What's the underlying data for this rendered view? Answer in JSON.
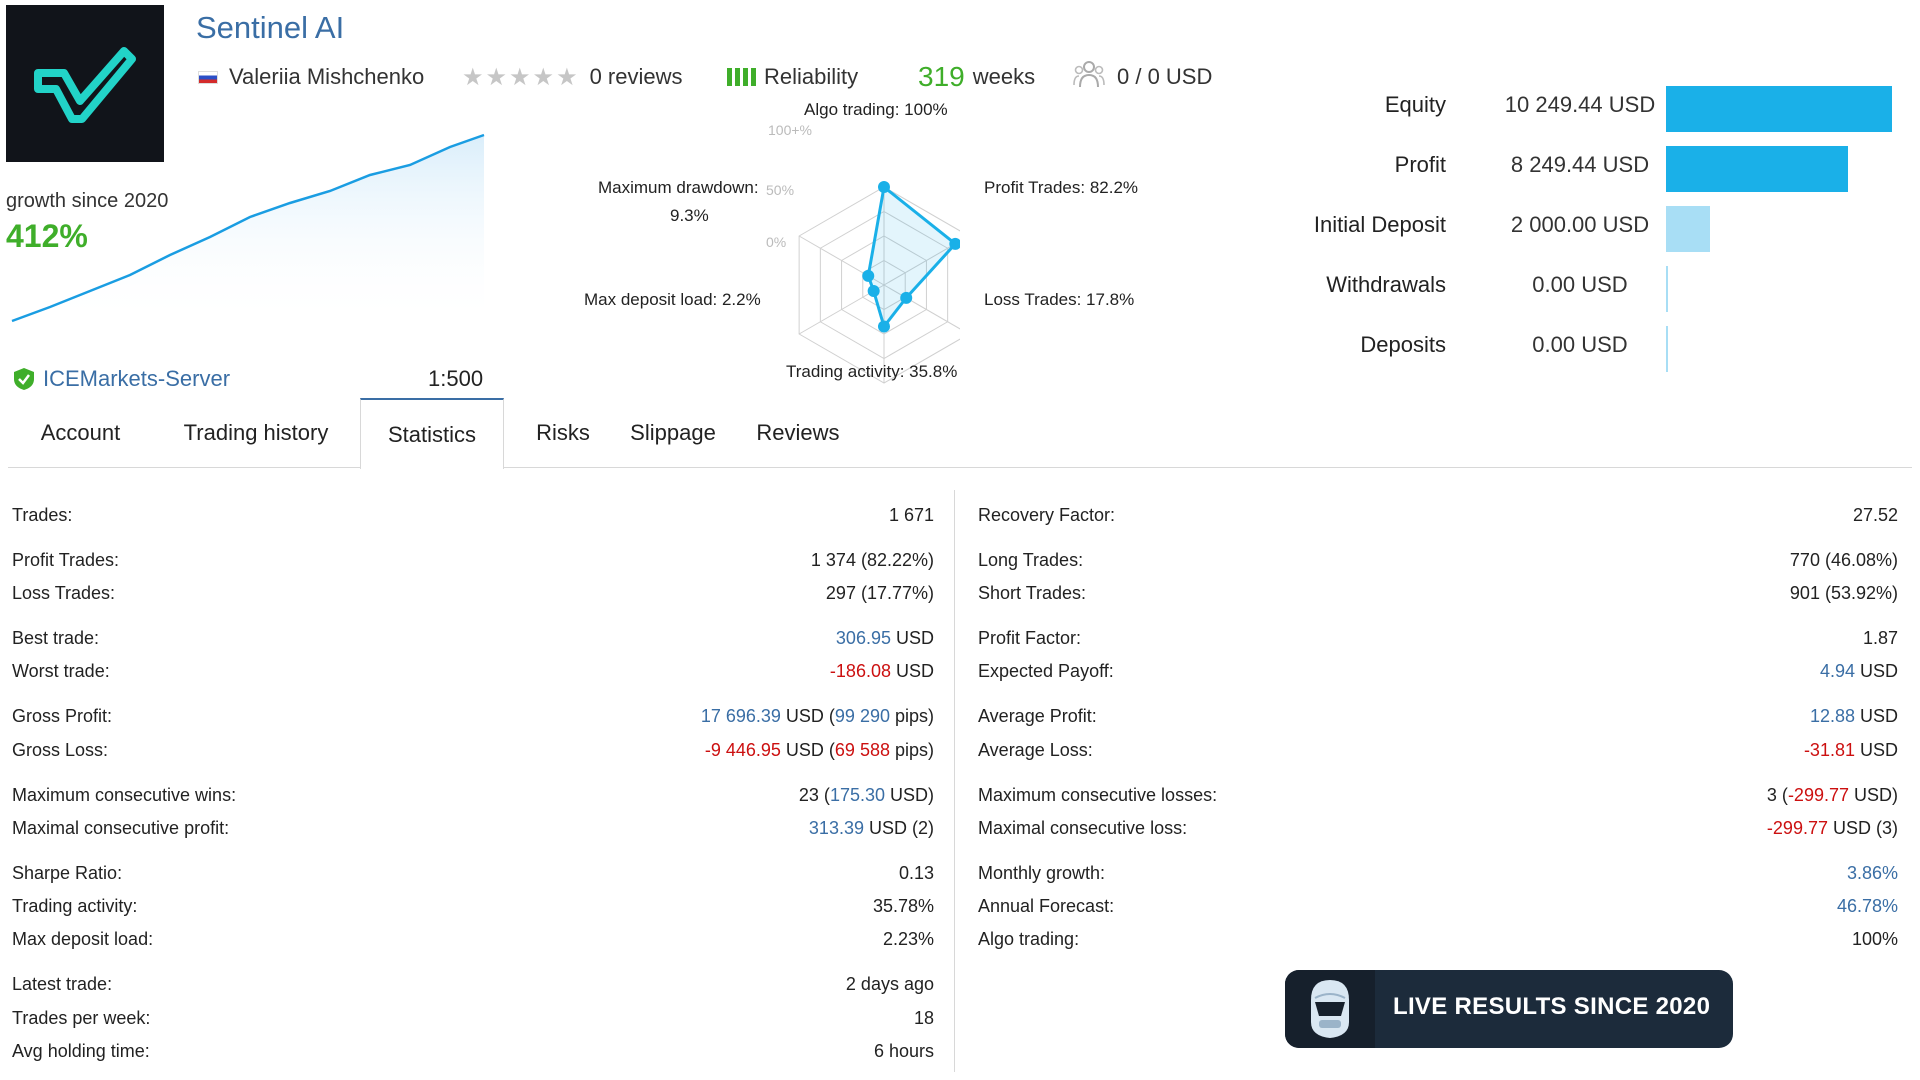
{
  "header": {
    "title": "Sentinel AI",
    "author": "Valeriia Mishchenko",
    "reviews": "0 reviews",
    "reliability": "Reliability",
    "weeks_num": "319",
    "weeks_label": "weeks",
    "subscribers": "0 / 0 USD",
    "star_rating": 0,
    "reliability_bars": 4
  },
  "growth": {
    "label": "growth since 2020",
    "value": "412%"
  },
  "server": {
    "name": "ICEMarkets-Server",
    "leverage": "1:500"
  },
  "radar": {
    "algo": "Algo trading: 100%",
    "profit": "Profit Trades: 82.2%",
    "loss": "Loss Trades: 17.8%",
    "activity": "Trading activity: 35.8%",
    "load": "Max deposit load: 2.2%",
    "drawdown_label": "Maximum drawdown:",
    "drawdown_value": "9.3%",
    "ring_100": "100+%",
    "ring_50": "50%",
    "ring_0": "0%",
    "values": [
      1.0,
      0.822,
      0.178,
      0.358,
      0.022,
      0.093
    ]
  },
  "balance": [
    {
      "label": "Equity",
      "value": "10 249.44 USD",
      "fill": 1.0,
      "color": "#1ab0e8"
    },
    {
      "label": "Profit",
      "value": "8 249.44 USD",
      "fill": 0.805,
      "color": "#1ab0e8"
    },
    {
      "label": "Initial Deposit",
      "value": "2 000.00 USD",
      "fill": 0.195,
      "color": "#a8def5"
    },
    {
      "label": "Withdrawals",
      "value": "0.00 USD",
      "fill": 0,
      "color": "#a8def5"
    },
    {
      "label": "Deposits",
      "value": "0.00 USD",
      "fill": 0,
      "color": "#a8def5"
    }
  ],
  "tabs": [
    "Account",
    "Trading history",
    "Statistics",
    "Risks",
    "Slippage",
    "Reviews"
  ],
  "active_tab": "Statistics",
  "stats_left": [
    {
      "label": "Trades:",
      "value": "1 671"
    },
    {
      "label": "Profit Trades:",
      "value": "1 374 (82.22%)"
    },
    {
      "label": "Loss Trades:",
      "value": "297 (17.77%)"
    },
    {
      "label": "Best trade:",
      "v1": "306.95",
      "v2": " USD",
      "c": "blue"
    },
    {
      "label": "Worst trade:",
      "v1": "-186.08",
      "v2": " USD",
      "c": "red"
    },
    {
      "label": "Gross Profit:",
      "v1": "17 696.39",
      "v2": " USD (",
      "v3": "99 290",
      "v4": " pips)",
      "c": "blue"
    },
    {
      "label": "Gross Loss:",
      "v1": "-9 446.95",
      "v2": " USD (",
      "v3": "69 588",
      "v4": " pips)",
      "c": "red"
    },
    {
      "label": "Maximum consecutive wins:",
      "v0": "23 (",
      "v1": "175.30",
      "v2": " USD)",
      "c": "blue"
    },
    {
      "label": "Maximal consecutive profit:",
      "v1": "313.39",
      "v2": " USD (2)",
      "c": "blue"
    },
    {
      "label": "Sharpe Ratio:",
      "value": "0.13"
    },
    {
      "label": "Trading activity:",
      "value": "35.78%"
    },
    {
      "label": "Max deposit load:",
      "value": "2.23%"
    },
    {
      "label": "Latest trade:",
      "value": "2 days ago"
    },
    {
      "label": "Trades per week:",
      "value": "18"
    },
    {
      "label": "Avg holding time:",
      "value": "6 hours"
    }
  ],
  "stats_right": [
    {
      "label": "Recovery Factor:",
      "value": "27.52"
    },
    {
      "label": "Long Trades:",
      "value": "770 (46.08%)"
    },
    {
      "label": "Short Trades:",
      "value": "901 (53.92%)"
    },
    {
      "label": "Profit Factor:",
      "value": "1.87"
    },
    {
      "label": "Expected Payoff:",
      "v1": "4.94",
      "v2": " USD",
      "c": "blue"
    },
    {
      "label": "Average Profit:",
      "v1": "12.88",
      "v2": " USD",
      "c": "blue"
    },
    {
      "label": "Average Loss:",
      "v1": "-31.81",
      "v2": " USD",
      "c": "red"
    },
    {
      "label": "Maximum consecutive losses:",
      "v0": "3 (",
      "v1": "-299.77",
      "v2": " USD)",
      "c": "red"
    },
    {
      "label": "Maximal consecutive loss:",
      "v1": "-299.77",
      "v2": " USD (3)",
      "c": "red"
    },
    {
      "label": "Monthly growth:",
      "v1": "3.86%",
      "c": "blue"
    },
    {
      "label": "Annual Forecast:",
      "v1": "46.78%",
      "c": "blue"
    },
    {
      "label": "Algo trading:",
      "value": "100%"
    }
  ],
  "banner": {
    "text": "LIVE RESULTS SINCE 2020"
  },
  "colors": {
    "accent_blue": "#3a6ea5",
    "green": "#3fae2a",
    "red": "#cc1010",
    "bar_blue": "#1ab0e8",
    "bar_light": "#a8def5"
  }
}
